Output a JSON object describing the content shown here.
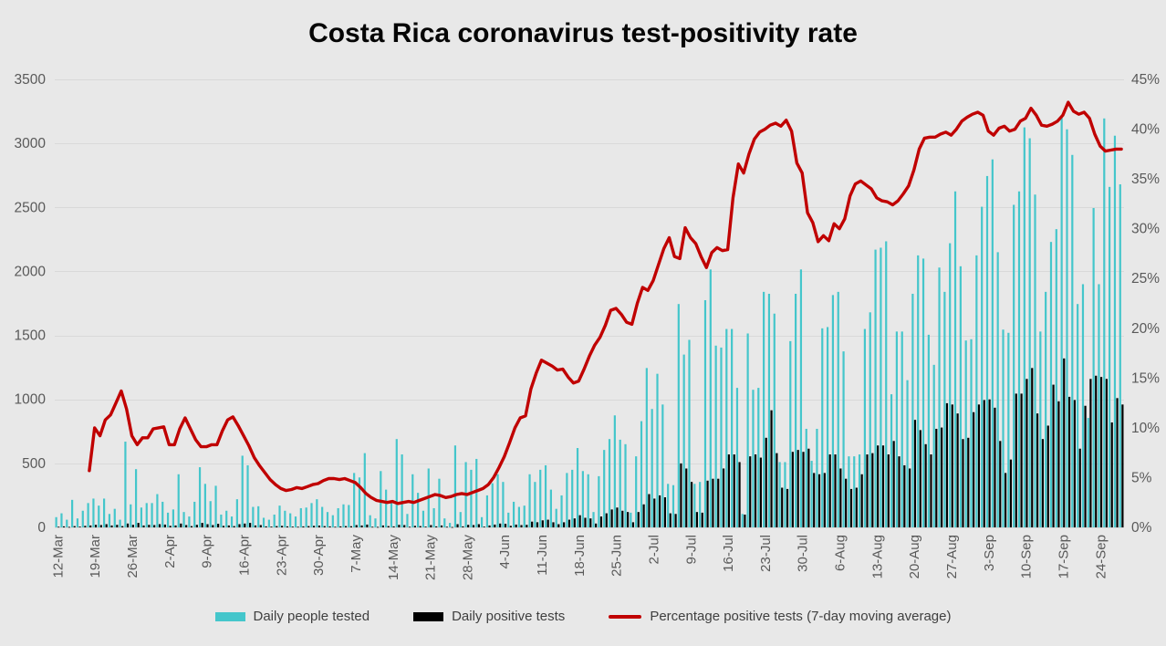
{
  "chart_data": {
    "type": "bar",
    "combo": "clustered columns + line on secondary axis",
    "title": "Costa Rica coronavirus test-positivity rate",
    "x_tick_labels": [
      "12-Mar",
      "19-Mar",
      "26-Mar",
      "2-Apr",
      "9-Apr",
      "16-Apr",
      "23-Apr",
      "30-Apr",
      "7-May",
      "14-May",
      "21-May",
      "28-May",
      "4-Jun",
      "11-Jun",
      "18-Jun",
      "25-Jun",
      "2-Jul",
      "9-Jul",
      "16-Jul",
      "23-Jul",
      "30-Jul",
      "6-Aug",
      "13-Aug",
      "20-Aug",
      "27-Aug",
      "3-Sep",
      "10-Sep",
      "17-Sep",
      "24-Sep"
    ],
    "x_tick_interval_days": 7,
    "left_axis": {
      "min": 0,
      "max": 3500,
      "step": 500,
      "ticks": [
        "0",
        "500",
        "1000",
        "1500",
        "2000",
        "2500",
        "3000",
        "3500"
      ]
    },
    "right_axis": {
      "min": 0,
      "max": 45,
      "step": 5,
      "format": "percent",
      "ticks": [
        "0%",
        "5%",
        "10%",
        "15%",
        "20%",
        "25%",
        "30%",
        "35%",
        "40%",
        "45%"
      ]
    },
    "grid": true,
    "legend_position": "bottom",
    "colors": {
      "background": "#e8e8e8",
      "grid": "#d9d9d9",
      "axis_text": "#595959",
      "title_text": "#050505",
      "legend_text": "#3f3f3f"
    },
    "series": [
      {
        "name": "Daily people tested",
        "type": "bar",
        "axis": "left",
        "color": "#44c6cb",
        "values": [
          80,
          110,
          60,
          215,
          70,
          130,
          190,
          225,
          170,
          225,
          105,
          145,
          60,
          670,
          180,
          455,
          155,
          190,
          190,
          260,
          200,
          115,
          140,
          415,
          120,
          85,
          200,
          470,
          340,
          205,
          325,
          100,
          130,
          85,
          220,
          560,
          485,
          160,
          165,
          75,
          60,
          100,
          170,
          130,
          110,
          85,
          150,
          155,
          190,
          220,
          160,
          120,
          95,
          150,
          180,
          175,
          425,
          390,
          580,
          95,
          70,
          440,
          295,
          190,
          690,
          570,
          105,
          415,
          270,
          130,
          460,
          150,
          380,
          70,
          35,
          640,
          120,
          510,
          450,
          535,
          80,
          250,
          345,
          415,
          355,
          115,
          200,
          160,
          170,
          415,
          355,
          450,
          485,
          295,
          145,
          250,
          425,
          450,
          620,
          440,
          415,
          120,
          400,
          605,
          690,
          875,
          685,
          650,
          115,
          555,
          830,
          1245,
          925,
          1200,
          960,
          340,
          330,
          1745,
          1350,
          1465,
          340,
          355,
          1775,
          2015,
          1420,
          1405,
          1550,
          1550,
          1090,
          105,
          1515,
          1075,
          1090,
          1840,
          1825,
          1670,
          510,
          510,
          1455,
          1825,
          2015,
          770,
          520,
          770,
          1555,
          1565,
          1815,
          1840,
          1375,
          555,
          555,
          570,
          1550,
          1680,
          2170,
          2185,
          2235,
          1040,
          1530,
          1530,
          1150,
          1825,
          2125,
          2100,
          1505,
          1270,
          2030,
          1840,
          2220,
          2625,
          2040,
          1460,
          1470,
          2125,
          2505,
          2745,
          2875,
          2150,
          1545,
          1520,
          2520,
          2625,
          3125,
          3040,
          2600,
          1530,
          1840,
          2230,
          2330,
          3205,
          3110,
          2910,
          1745,
          1900,
          855,
          2495,
          1900,
          3195,
          2660,
          3060,
          2680
        ]
      },
      {
        "name": "Daily positive tests",
        "type": "bar",
        "axis": "left",
        "color": "#000000",
        "values": [
          5,
          8,
          4,
          10,
          6,
          12,
          15,
          20,
          18,
          25,
          15,
          20,
          10,
          30,
          20,
          35,
          15,
          20,
          18,
          25,
          22,
          12,
          15,
          30,
          18,
          10,
          20,
          35,
          25,
          18,
          28,
          12,
          15,
          10,
          25,
          30,
          35,
          15,
          18,
          8,
          6,
          10,
          12,
          8,
          6,
          5,
          8,
          10,
          12,
          14,
          10,
          8,
          5,
          8,
          10,
          9,
          18,
          15,
          22,
          5,
          4,
          15,
          10,
          8,
          20,
          18,
          5,
          12,
          10,
          6,
          18,
          8,
          15,
          5,
          3,
          25,
          8,
          20,
          18,
          25,
          6,
          15,
          22,
          30,
          28,
          12,
          22,
          18,
          20,
          45,
          40,
          55,
          60,
          40,
          25,
          40,
          60,
          70,
          95,
          75,
          70,
          30,
          85,
          110,
          140,
          155,
          130,
          120,
          40,
          120,
          180,
          260,
          225,
          250,
          235,
          110,
          105,
          500,
          460,
          355,
          120,
          115,
          365,
          380,
          380,
          460,
          570,
          570,
          510,
          100,
          555,
          570,
          545,
          700,
          915,
          580,
          310,
          300,
          590,
          605,
          590,
          615,
          425,
          415,
          425,
          570,
          570,
          460,
          380,
          300,
          310,
          415,
          570,
          580,
          640,
          640,
          570,
          675,
          555,
          485,
          460,
          840,
          760,
          650,
          570,
          770,
          780,
          970,
          960,
          890,
          690,
          700,
          900,
          960,
          995,
          1000,
          935,
          675,
          425,
          530,
          1045,
          1045,
          1160,
          1245,
          890,
          690,
          795,
          1115,
          985,
          1320,
          1020,
          995,
          615,
          950,
          1160,
          1185,
          1175,
          1160,
          820,
          1010,
          960
        ]
      },
      {
        "name": "Percentage positive tests (7-day moving average)",
        "type": "line",
        "axis": "right",
        "color": "#c00000",
        "values": [
          null,
          null,
          null,
          null,
          null,
          null,
          5.7,
          10,
          9.2,
          10.8,
          11.3,
          12.5,
          13.7,
          11.9,
          9.2,
          8.3,
          9,
          9,
          9.9,
          10,
          10.1,
          8.3,
          8.3,
          9.9,
          11,
          9.9,
          8.8,
          8.1,
          8.1,
          8.3,
          8.3,
          9.7,
          10.8,
          11.1,
          10.2,
          9.2,
          8.2,
          7,
          6.2,
          5.5,
          4.8,
          4.3,
          3.9,
          3.7,
          3.8,
          4,
          3.9,
          4.1,
          4.3,
          4.4,
          4.7,
          4.9,
          4.9,
          4.8,
          4.9,
          4.7,
          4.5,
          4,
          3.4,
          3,
          2.7,
          2.6,
          2.5,
          2.6,
          2.4,
          2.5,
          2.6,
          2.5,
          2.7,
          2.9,
          3.1,
          3.3,
          3.2,
          3,
          3.1,
          3.3,
          3.4,
          3.3,
          3.5,
          3.7,
          3.9,
          4.3,
          5,
          6,
          7.1,
          8.5,
          10,
          11,
          11.2,
          13.9,
          15.5,
          16.8,
          16.5,
          16.2,
          15.8,
          15.9,
          15.1,
          14.5,
          14.7,
          15.9,
          17.2,
          18.3,
          19.1,
          20.3,
          21.8,
          22,
          21.4,
          20.6,
          20.4,
          22.5,
          24.1,
          23.8,
          24.8,
          26.4,
          28,
          29.1,
          27.2,
          27,
          30.1,
          29.1,
          28.5,
          27.2,
          26.1,
          27.6,
          28.1,
          27.8,
          27.9,
          33.1,
          36.5,
          35.6,
          37.5,
          39,
          39.7,
          40,
          40.4,
          40.6,
          40.3,
          40.9,
          39.8,
          36.6,
          35.6,
          31.6,
          30.6,
          28.7,
          29.3,
          28.8,
          30.5,
          30,
          31,
          33.3,
          34.5,
          34.8,
          34.4,
          34,
          33.1,
          32.8,
          32.7,
          32.4,
          32.8,
          33.5,
          34.3,
          35.9,
          38,
          39.1,
          39.2,
          39.2,
          39.5,
          39.7,
          39.4,
          40,
          40.8,
          41.2,
          41.5,
          41.7,
          41.4,
          39.8,
          39.4,
          40.1,
          40.3,
          39.8,
          40,
          40.8,
          41.1,
          42.1,
          41.4,
          40.4,
          40.3,
          40.5,
          40.8,
          41.4,
          42.7,
          41.8,
          41.5,
          41.7,
          41.1,
          39.5,
          38.3,
          37.8,
          37.9,
          38,
          38
        ]
      }
    ]
  }
}
